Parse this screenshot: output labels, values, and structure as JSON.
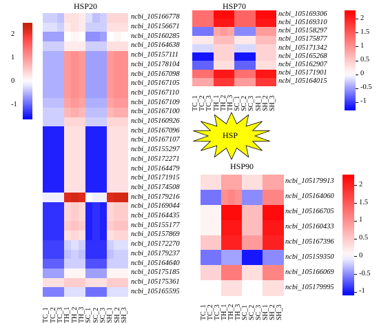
{
  "chart_data": [
    {
      "type": "heatmap",
      "title": "HSP20",
      "columns": [
        "TC_1",
        "TC_2",
        "TC_3",
        "TH_1",
        "TH_2",
        "TH_3",
        "SC_1",
        "SC_2",
        "SC_3",
        "SH_1",
        "SH_2",
        "SH_3"
      ],
      "rows": [
        "ncbi_105166778",
        "ncbi_105156671",
        "ncbi_105160285",
        "ncbi_105164638",
        "ncbi_105157111",
        "ncbi_105178104",
        "ncbi_105167098",
        "ncbi_105167105",
        "ncbi_105167110",
        "ncbi_105167109",
        "ncbi_105167100",
        "ncbi_105160926",
        "ncbi_105167096",
        "ncbi_105167107",
        "ncbi_105155297",
        "ncbi_105172271",
        "ncbi_105164479",
        "ncbi_105171915",
        "ncbi_105174508",
        "ncbi_105179216",
        "ncbi_105169044",
        "ncbi_105164435",
        "ncbi_105155177",
        "ncbi_105157869",
        "ncbi_105172270",
        "ncbi_105179237",
        "ncbi_105164640",
        "ncbi_105175185",
        "ncbi_105175361",
        "ncbi_105165595"
      ],
      "values": [
        [
          -0.3,
          -0.3,
          -0.4,
          0.3,
          0.3,
          0.2,
          -0.2,
          -0.4,
          -0.3,
          0.4,
          0.4,
          0.4
        ],
        [
          -0.2,
          -0.2,
          -0.3,
          0.2,
          0.3,
          0.2,
          -0.3,
          -0.3,
          -0.3,
          0.3,
          0.3,
          0.3
        ],
        [
          -0.6,
          -0.6,
          -0.6,
          0.0,
          0.1,
          0.0,
          -0.7,
          -0.7,
          -0.6,
          0.0,
          0.1,
          0.0
        ],
        [
          -0.3,
          -0.3,
          -0.3,
          0.2,
          0.2,
          0.2,
          -0.3,
          -0.3,
          -0.3,
          0.3,
          0.3,
          0.3
        ],
        [
          -0.5,
          -0.5,
          -0.5,
          1.0,
          1.1,
          1.0,
          -0.6,
          -0.6,
          -0.6,
          1.0,
          1.1,
          1.1
        ],
        [
          -0.5,
          -0.5,
          -0.5,
          1.0,
          1.1,
          1.0,
          -0.6,
          -0.6,
          -0.6,
          1.0,
          1.1,
          1.1
        ],
        [
          -0.5,
          -0.5,
          -0.5,
          1.0,
          1.1,
          1.0,
          -0.6,
          -0.6,
          -0.6,
          1.0,
          1.1,
          1.1
        ],
        [
          -0.5,
          -0.5,
          -0.5,
          1.0,
          1.1,
          1.0,
          -0.6,
          -0.6,
          -0.6,
          1.0,
          1.1,
          1.1
        ],
        [
          -0.5,
          -0.5,
          -0.5,
          1.0,
          1.1,
          1.0,
          -0.6,
          -0.6,
          -0.6,
          1.0,
          1.1,
          1.1
        ],
        [
          -0.4,
          -0.4,
          -0.4,
          0.9,
          1.0,
          0.9,
          -0.5,
          -0.5,
          -0.5,
          0.9,
          1.0,
          1.0
        ],
        [
          -0.3,
          -0.3,
          -0.3,
          0.7,
          0.8,
          0.7,
          -0.4,
          -0.4,
          -0.4,
          0.7,
          0.8,
          0.8
        ],
        [
          -0.3,
          -0.3,
          -0.3,
          0.4,
          0.4,
          0.4,
          -0.3,
          -0.3,
          -0.3,
          0.4,
          0.4,
          0.4
        ],
        [
          -1.4,
          -1.4,
          -1.4,
          0.3,
          0.3,
          0.3,
          -1.4,
          -1.4,
          -1.4,
          0.3,
          0.3,
          0.3
        ],
        [
          -1.4,
          -1.4,
          -1.4,
          0.3,
          0.3,
          0.3,
          -1.4,
          -1.4,
          -1.4,
          0.3,
          0.3,
          0.3
        ],
        [
          -1.4,
          -1.4,
          -1.4,
          0.3,
          0.3,
          0.3,
          -1.4,
          -1.4,
          -1.4,
          0.3,
          0.3,
          0.3
        ],
        [
          -1.4,
          -1.4,
          -1.4,
          0.3,
          0.3,
          0.3,
          -1.4,
          -1.4,
          -1.4,
          0.3,
          0.3,
          0.3
        ],
        [
          -1.4,
          -1.4,
          -1.4,
          0.3,
          0.3,
          0.3,
          -1.4,
          -1.4,
          -1.4,
          0.3,
          0.3,
          0.3
        ],
        [
          -1.4,
          -1.4,
          -1.4,
          0.3,
          0.3,
          0.3,
          -1.4,
          -1.4,
          -1.4,
          0.3,
          0.3,
          0.3
        ],
        [
          -1.4,
          -1.4,
          -1.4,
          0.3,
          0.3,
          0.3,
          -1.4,
          -1.4,
          -1.4,
          0.3,
          0.3,
          0.3
        ],
        [
          -0.1,
          -0.1,
          -0.1,
          2.2,
          2.3,
          2.2,
          0.0,
          -0.1,
          -0.1,
          2.2,
          2.3,
          2.3
        ],
        [
          -1.3,
          -1.3,
          -1.3,
          0.4,
          0.5,
          0.4,
          -1.4,
          -1.3,
          -1.4,
          0.4,
          0.5,
          0.5
        ],
        [
          -1.3,
          -1.3,
          -1.3,
          0.4,
          0.5,
          0.4,
          -1.4,
          -1.3,
          -1.4,
          0.4,
          0.5,
          0.5
        ],
        [
          -1.3,
          -1.3,
          -1.3,
          0.5,
          0.6,
          0.5,
          -1.4,
          -1.3,
          -1.4,
          0.5,
          0.6,
          0.6
        ],
        [
          -1.3,
          -1.3,
          -1.3,
          0.3,
          0.4,
          0.3,
          -1.4,
          -1.3,
          -1.4,
          0.3,
          0.4,
          0.4
        ],
        [
          -1.2,
          -1.2,
          -1.2,
          -0.3,
          -0.2,
          -0.3,
          -1.3,
          -1.3,
          -1.3,
          -0.3,
          -0.2,
          -0.2
        ],
        [
          -1.2,
          -1.2,
          -1.2,
          -0.4,
          -0.3,
          -0.4,
          -1.3,
          -1.3,
          -1.3,
          -0.4,
          -0.3,
          -0.3
        ],
        [
          -1.0,
          -1.0,
          -1.0,
          -0.3,
          -0.3,
          -0.3,
          -1.1,
          -1.1,
          -1.1,
          -0.3,
          -0.3,
          -0.3
        ],
        [
          -0.6,
          -0.6,
          -0.6,
          0.1,
          0.1,
          0.1,
          -0.6,
          -0.6,
          -0.6,
          0.1,
          0.1,
          0.1
        ],
        [
          0.3,
          0.3,
          0.3,
          0.5,
          0.5,
          0.5,
          0.3,
          0.3,
          0.3,
          0.5,
          0.5,
          0.5
        ],
        [
          -0.8,
          -0.8,
          -0.8,
          -0.2,
          -0.2,
          -0.2,
          -0.9,
          -0.9,
          -0.9,
          -0.2,
          -0.2,
          -0.2
        ]
      ],
      "colorbar": {
        "ticks": [
          2,
          1,
          0,
          -1
        ],
        "min": -1.6,
        "max": 2.5,
        "low_color": "#0000ff",
        "mid_color": "#ffffff",
        "high_color": "#ff0000",
        "top_color": "#8b4513"
      }
    },
    {
      "type": "heatmap",
      "title": "HSP70",
      "columns": [
        "TC_1",
        "TC_2",
        "TC_3",
        "TH_1",
        "TH_2",
        "TH_3",
        "SC_1",
        "SC_2",
        "SC_3",
        "SH_1",
        "SH_2",
        "SH_3"
      ],
      "rows": [
        "ncbi_105169306",
        "ncbi_105169310",
        "ncbi_105158297",
        "ncbi_105175877",
        "ncbi_105171342",
        "ncbi_105165268",
        "ncbi_105162907",
        "ncbi_105171901",
        "ncbi_105164015"
      ],
      "values": [
        [
          1.3,
          1.3,
          1.3,
          2.2,
          2.2,
          2.2,
          1.4,
          1.4,
          1.4,
          2.2,
          2.2,
          2.2
        ],
        [
          1.3,
          1.3,
          1.3,
          2.1,
          2.1,
          2.1,
          1.4,
          1.4,
          1.4,
          2.1,
          2.1,
          2.1
        ],
        [
          -0.7,
          -0.7,
          -0.7,
          0.8,
          0.9,
          0.8,
          -0.6,
          -0.6,
          -0.6,
          0.9,
          0.9,
          0.9
        ],
        [
          0.2,
          0.2,
          0.2,
          0.6,
          0.6,
          0.6,
          0.2,
          0.2,
          0.2,
          0.6,
          0.6,
          0.6
        ],
        [
          -0.2,
          -0.2,
          -0.2,
          0.4,
          0.4,
          0.4,
          -0.2,
          -0.2,
          -0.2,
          0.4,
          0.4,
          0.4
        ],
        [
          -1.2,
          -1.2,
          -1.2,
          0.4,
          0.4,
          0.4,
          -1.2,
          -1.2,
          -1.2,
          0.4,
          0.4,
          0.4
        ],
        [
          -0.8,
          -0.8,
          -0.8,
          0.3,
          0.3,
          0.3,
          -0.8,
          -0.8,
          -0.8,
          0.3,
          0.3,
          0.3
        ],
        [
          1.3,
          1.3,
          1.3,
          2.1,
          2.1,
          2.1,
          1.3,
          1.3,
          1.3,
          2.1,
          2.1,
          2.1
        ],
        [
          0.8,
          0.8,
          0.8,
          1.8,
          1.8,
          1.8,
          0.9,
          0.9,
          0.9,
          1.8,
          1.8,
          1.8
        ]
      ],
      "colorbar": {
        "ticks": [
          2,
          1.5,
          1,
          0.5,
          0,
          -0.5,
          -1
        ],
        "min": -1.3,
        "max": 2.3,
        "low_color": "#0000ff",
        "mid_color": "#ffffff",
        "high_color": "#ff0000"
      }
    },
    {
      "type": "heatmap",
      "title": "HSP90",
      "columns": [
        "TC_1",
        "TC_2",
        "TC_3",
        "TH_1",
        "TH_2",
        "TH_3",
        "SC_1",
        "SC_2",
        "SC_3",
        "SH_1",
        "SH_2",
        "SH_3"
      ],
      "rows": [
        "ncbi_105179913",
        "ncbi_105164060",
        "ncbi_105166705",
        "ncbi_105160433",
        "ncbi_105167396",
        "ncbi_105159350",
        "ncbi_105166069",
        "ncbi_105179995"
      ],
      "values": [
        [
          0.3,
          0.3,
          0.3,
          0.8,
          0.8,
          0.8,
          0.3,
          0.3,
          0.3,
          0.8,
          0.8,
          0.8
        ],
        [
          -0.6,
          -0.6,
          -0.6,
          1.0,
          1.1,
          1.0,
          -0.5,
          -0.5,
          -0.5,
          1.1,
          1.1,
          1.1
        ],
        [
          0.1,
          0.1,
          0.1,
          2.2,
          2.2,
          2.2,
          0.6,
          0.6,
          0.6,
          2.2,
          2.2,
          2.2
        ],
        [
          0.1,
          0.1,
          0.1,
          2.1,
          2.1,
          2.1,
          0.6,
          0.6,
          0.6,
          2.1,
          2.1,
          2.1
        ],
        [
          0.5,
          0.5,
          0.5,
          2.0,
          2.0,
          2.0,
          0.9,
          0.9,
          0.9,
          2.0,
          2.0,
          2.0
        ],
        [
          -0.6,
          -0.6,
          -0.6,
          -0.4,
          -0.4,
          -0.4,
          -1.0,
          -1.0,
          -1.0,
          -0.5,
          -0.5,
          -0.5
        ],
        [
          0.4,
          0.4,
          0.4,
          1.2,
          1.2,
          1.2,
          0.3,
          0.3,
          0.3,
          1.1,
          1.1,
          1.1
        ],
        [
          0.0,
          0.0,
          0.0,
          0.3,
          0.3,
          0.3,
          0.0,
          0.0,
          0.0,
          0.3,
          0.3,
          0.3
        ]
      ],
      "colorbar": {
        "ticks": [
          2,
          1.5,
          1,
          0.5,
          0,
          -0.5,
          -1
        ],
        "min": -1.1,
        "max": 2.3,
        "low_color": "#0000ff",
        "mid_color": "#ffffff",
        "high_color": "#ff0000"
      }
    }
  ],
  "center_label": "HSP",
  "star_color": "#ffff00"
}
